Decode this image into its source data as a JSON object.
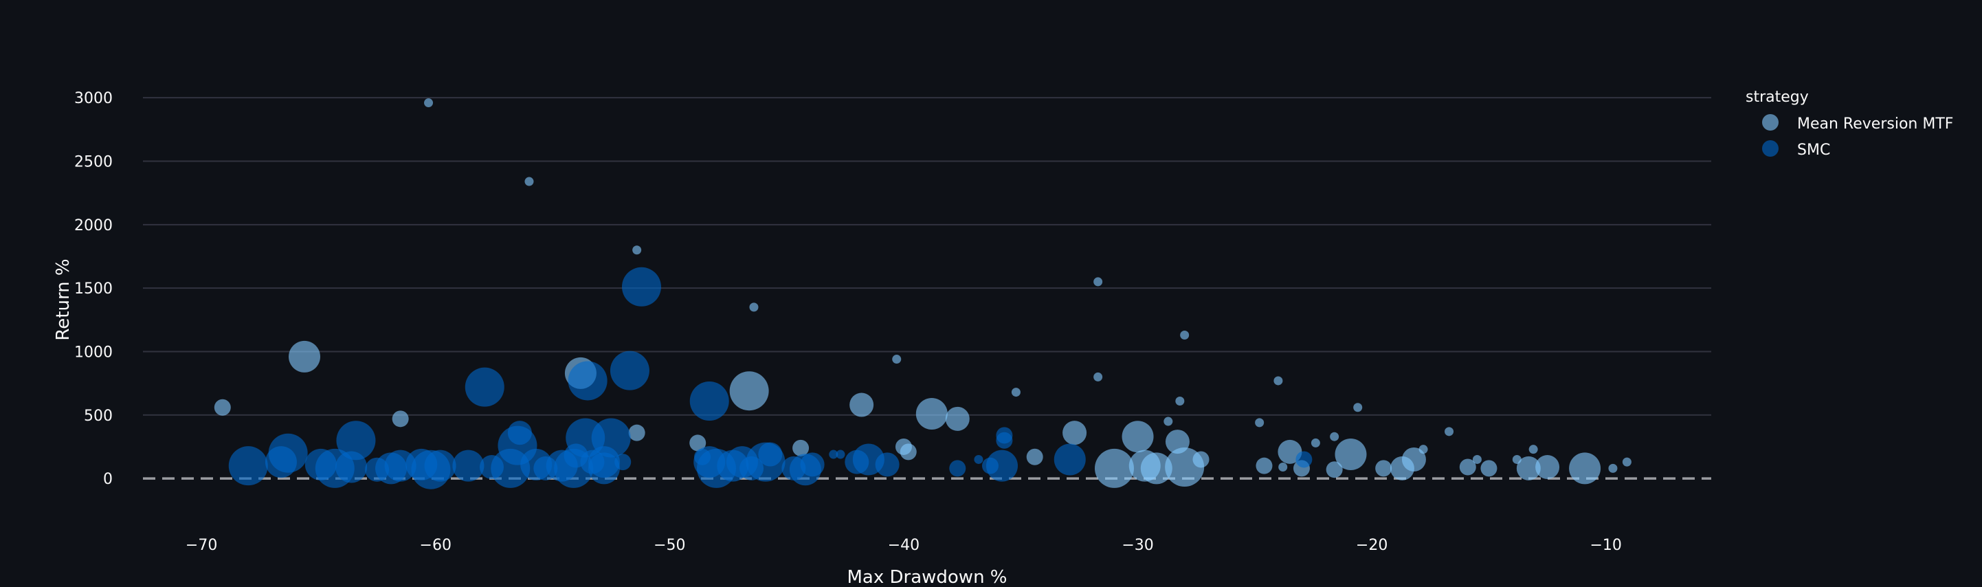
{
  "chart_data": {
    "type": "scatter",
    "title": "",
    "xlabel": "Max Drawdown %",
    "ylabel": "Return %",
    "xlim": [
      -72.5,
      -5.5
    ],
    "ylim": [
      -400,
      3250
    ],
    "xticks": [
      -70,
      -60,
      -50,
      -40,
      -30,
      -20,
      -10
    ],
    "xtick_labels": [
      "−70",
      "−60",
      "−50",
      "−40",
      "−30",
      "−20",
      "−10"
    ],
    "yticks": [
      0,
      500,
      1000,
      1500,
      2000,
      2500,
      3000
    ],
    "ytick_labels": [
      "0",
      "500",
      "1000",
      "1500",
      "2000",
      "2500",
      "3000"
    ],
    "grid": true,
    "zero_line": "dashed",
    "legend": {
      "title": "strategy",
      "position": "top-right"
    },
    "series": [
      {
        "name": "Mean Reversion MTF",
        "color": "#83c9ff",
        "points": [
          {
            "x": -60.3,
            "y": 2960,
            "size": 1
          },
          {
            "x": -56.0,
            "y": 2340,
            "size": 1
          },
          {
            "x": -51.4,
            "y": 1800,
            "size": 1
          },
          {
            "x": -46.4,
            "y": 1350,
            "size": 1
          },
          {
            "x": -31.7,
            "y": 1550,
            "size": 1
          },
          {
            "x": -28.0,
            "y": 1130,
            "size": 1
          },
          {
            "x": -65.6,
            "y": 960,
            "size": 4
          },
          {
            "x": -69.1,
            "y": 560,
            "size": 2
          },
          {
            "x": -61.5,
            "y": 470,
            "size": 2
          },
          {
            "x": -53.8,
            "y": 830,
            "size": 4
          },
          {
            "x": -51.4,
            "y": 360,
            "size": 2
          },
          {
            "x": -48.8,
            "y": 280,
            "size": 2
          },
          {
            "x": -46.6,
            "y": 690,
            "size": 5
          },
          {
            "x": -44.4,
            "y": 240,
            "size": 2
          },
          {
            "x": -41.8,
            "y": 580,
            "size": 3
          },
          {
            "x": -40.3,
            "y": 940,
            "size": 1
          },
          {
            "x": -40.0,
            "y": 250,
            "size": 2
          },
          {
            "x": -39.8,
            "y": 210,
            "size": 2
          },
          {
            "x": -38.8,
            "y": 510,
            "size": 4
          },
          {
            "x": -37.7,
            "y": 470,
            "size": 3
          },
          {
            "x": -35.2,
            "y": 680,
            "size": 1
          },
          {
            "x": -34.4,
            "y": 170,
            "size": 2
          },
          {
            "x": -32.7,
            "y": 360,
            "size": 3
          },
          {
            "x": -31.7,
            "y": 800,
            "size": 1
          },
          {
            "x": -31.0,
            "y": 80,
            "size": 5
          },
          {
            "x": -30.0,
            "y": 330,
            "size": 4
          },
          {
            "x": -29.7,
            "y": 100,
            "size": 4
          },
          {
            "x": -29.2,
            "y": 80,
            "size": 4
          },
          {
            "x": -28.7,
            "y": 450,
            "size": 1
          },
          {
            "x": -28.3,
            "y": 290,
            "size": 3
          },
          {
            "x": -28.2,
            "y": 610,
            "size": 1
          },
          {
            "x": -28.0,
            "y": 90,
            "size": 5
          },
          {
            "x": -27.3,
            "y": 150,
            "size": 2
          },
          {
            "x": -24.8,
            "y": 440,
            "size": 1
          },
          {
            "x": -24.6,
            "y": 100,
            "size": 2
          },
          {
            "x": -24.0,
            "y": 770,
            "size": 1
          },
          {
            "x": -23.8,
            "y": 90,
            "size": 1
          },
          {
            "x": -23.5,
            "y": 210,
            "size": 3
          },
          {
            "x": -23.0,
            "y": 80,
            "size": 2
          },
          {
            "x": -22.4,
            "y": 280,
            "size": 1
          },
          {
            "x": -21.6,
            "y": 330,
            "size": 1
          },
          {
            "x": -21.6,
            "y": 70,
            "size": 2
          },
          {
            "x": -20.9,
            "y": 190,
            "size": 4
          },
          {
            "x": -20.6,
            "y": 560,
            "size": 1
          },
          {
            "x": -19.5,
            "y": 80,
            "size": 2
          },
          {
            "x": -18.7,
            "y": 80,
            "size": 3
          },
          {
            "x": -18.2,
            "y": 150,
            "size": 3
          },
          {
            "x": -17.8,
            "y": 230,
            "size": 1
          },
          {
            "x": -16.7,
            "y": 370,
            "size": 1
          },
          {
            "x": -15.9,
            "y": 90,
            "size": 2
          },
          {
            "x": -15.5,
            "y": 150,
            "size": 1
          },
          {
            "x": -15.0,
            "y": 80,
            "size": 2
          },
          {
            "x": -13.8,
            "y": 150,
            "size": 1
          },
          {
            "x": -13.3,
            "y": 80,
            "size": 3
          },
          {
            "x": -13.1,
            "y": 230,
            "size": 1
          },
          {
            "x": -12.5,
            "y": 90,
            "size": 3
          },
          {
            "x": -10.9,
            "y": 80,
            "size": 4
          },
          {
            "x": -9.7,
            "y": 80,
            "size": 1
          },
          {
            "x": -9.1,
            "y": 130,
            "size": 1
          }
        ]
      },
      {
        "name": "SMC",
        "color": "#0068c9",
        "points": [
          {
            "x": -51.2,
            "y": 1510,
            "size": 5
          },
          {
            "x": -57.9,
            "y": 720,
            "size": 5
          },
          {
            "x": -53.5,
            "y": 770,
            "size": 5
          },
          {
            "x": -51.7,
            "y": 850,
            "size": 5
          },
          {
            "x": -48.3,
            "y": 610,
            "size": 5
          },
          {
            "x": -63.4,
            "y": 300,
            "size": 5
          },
          {
            "x": -56.4,
            "y": 360,
            "size": 3
          },
          {
            "x": -56.5,
            "y": 260,
            "size": 5
          },
          {
            "x": -54.0,
            "y": 180,
            "size": 3
          },
          {
            "x": -53.6,
            "y": 320,
            "size": 5
          },
          {
            "x": -52.5,
            "y": 320,
            "size": 5
          },
          {
            "x": -52.8,
            "y": 130,
            "size": 4
          },
          {
            "x": -68.0,
            "y": 100,
            "size": 5
          },
          {
            "x": -66.3,
            "y": 200,
            "size": 5
          },
          {
            "x": -66.6,
            "y": 130,
            "size": 4
          },
          {
            "x": -64.9,
            "y": 110,
            "size": 4
          },
          {
            "x": -64.3,
            "y": 80,
            "size": 5
          },
          {
            "x": -63.6,
            "y": 90,
            "size": 4
          },
          {
            "x": -62.5,
            "y": 70,
            "size": 3
          },
          {
            "x": -61.9,
            "y": 80,
            "size": 4
          },
          {
            "x": -61.5,
            "y": 100,
            "size": 4
          },
          {
            "x": -60.6,
            "y": 110,
            "size": 4
          },
          {
            "x": -60.2,
            "y": 70,
            "size": 5
          },
          {
            "x": -59.8,
            "y": 100,
            "size": 4
          },
          {
            "x": -58.6,
            "y": 100,
            "size": 4
          },
          {
            "x": -57.6,
            "y": 90,
            "size": 3
          },
          {
            "x": -56.8,
            "y": 80,
            "size": 5
          },
          {
            "x": -55.7,
            "y": 110,
            "size": 4
          },
          {
            "x": -55.3,
            "y": 80,
            "size": 3
          },
          {
            "x": -54.6,
            "y": 100,
            "size": 4
          },
          {
            "x": -54.1,
            "y": 80,
            "size": 5
          },
          {
            "x": -53.3,
            "y": 130,
            "size": 3
          },
          {
            "x": -52.8,
            "y": 80,
            "size": 4
          },
          {
            "x": -52.0,
            "y": 130,
            "size": 2
          },
          {
            "x": -48.6,
            "y": 170,
            "size": 2
          },
          {
            "x": -48.3,
            "y": 130,
            "size": 4
          },
          {
            "x": -48.0,
            "y": 80,
            "size": 5
          },
          {
            "x": -47.3,
            "y": 100,
            "size": 4
          },
          {
            "x": -46.9,
            "y": 130,
            "size": 4
          },
          {
            "x": -46.5,
            "y": 80,
            "size": 3
          },
          {
            "x": -45.9,
            "y": 130,
            "size": 5
          },
          {
            "x": -45.7,
            "y": 190,
            "size": 3
          },
          {
            "x": -44.7,
            "y": 80,
            "size": 3
          },
          {
            "x": -44.2,
            "y": 70,
            "size": 4
          },
          {
            "x": -43.9,
            "y": 110,
            "size": 3
          },
          {
            "x": -43.0,
            "y": 190,
            "size": 1
          },
          {
            "x": -42.7,
            "y": 190,
            "size": 1
          },
          {
            "x": -42.0,
            "y": 130,
            "size": 3
          },
          {
            "x": -41.5,
            "y": 150,
            "size": 4
          },
          {
            "x": -40.7,
            "y": 110,
            "size": 3
          },
          {
            "x": -37.7,
            "y": 80,
            "size": 2
          },
          {
            "x": -36.8,
            "y": 150,
            "size": 1
          },
          {
            "x": -36.3,
            "y": 100,
            "size": 2
          },
          {
            "x": -35.7,
            "y": 340,
            "size": 2
          },
          {
            "x": -35.7,
            "y": 300,
            "size": 2
          },
          {
            "x": -35.8,
            "y": 100,
            "size": 4
          },
          {
            "x": -32.9,
            "y": 150,
            "size": 4
          },
          {
            "x": -22.9,
            "y": 150,
            "size": 2
          }
        ]
      }
    ]
  }
}
